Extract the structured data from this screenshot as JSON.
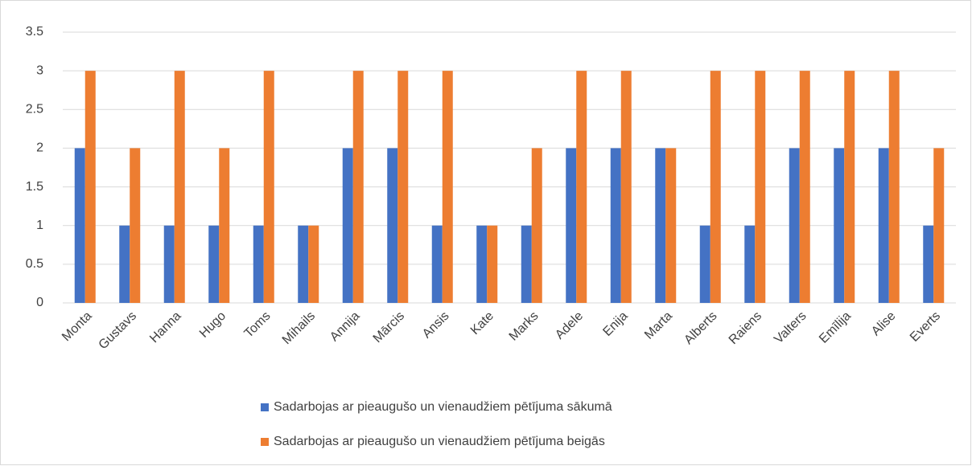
{
  "chart_data": {
    "type": "bar",
    "categories": [
      "Monta",
      "Gustavs",
      "Hanna",
      "Hugo",
      "Toms",
      "Mihails",
      "Annija",
      "Mārcis",
      "Ansis",
      "Kate",
      "Marks",
      "Adele",
      "Enija",
      "Marta",
      "Alberts",
      "Raiens",
      "Valters",
      "Emīlija",
      "Alise",
      "Everts"
    ],
    "series": [
      {
        "name": "Sadarbojas ar pieaugušo un vienaudžiem pētījuma sākumā",
        "color": "#4472c4",
        "values": [
          2,
          1,
          1,
          1,
          1,
          1,
          2,
          2,
          1,
          1,
          1,
          2,
          2,
          2,
          1,
          1,
          2,
          2,
          2,
          1
        ]
      },
      {
        "name": "Sadarbojas ar pieaugušo un vienaudžiem pētījuma beigās",
        "color": "#ed7d31",
        "values": [
          3,
          2,
          3,
          2,
          3,
          1,
          3,
          3,
          3,
          1,
          2,
          3,
          3,
          2,
          3,
          3,
          3,
          3,
          3,
          2
        ]
      }
    ],
    "ylim": [
      0,
      3.5
    ],
    "yticks": [
      0,
      0.5,
      1,
      1.5,
      2,
      2.5,
      3,
      3.5
    ],
    "grid": true,
    "legend": "bottom"
  }
}
